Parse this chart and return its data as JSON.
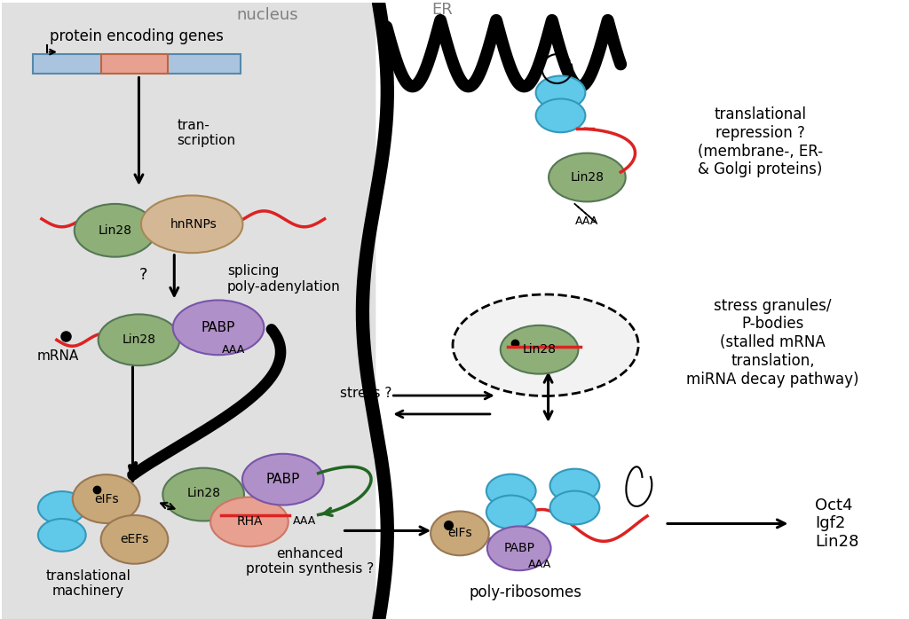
{
  "bg_color": "#ffffff",
  "nucleus_bg": "#e8e8e8",
  "labels": {
    "protein_encoding_genes": "protein encoding genes",
    "nucleus": "nucleus",
    "ER": "ER",
    "transcription": "tran-\nscription",
    "splicing": "splicing\npoly-adenylation",
    "mRNA": "mRNA",
    "stress": "stress ?",
    "translational_repression": "translational\nrepression ?\n(membrane-, ER-\n& Golgi proteins)",
    "stress_granules": "stress granules/\nP-bodies\n(stalled mRNA\ntranslation,\nmiRNA decay pathway)",
    "enhanced_protein": "enhanced\nprotein synthesis ?",
    "translational_machinery": "translational\nmachinery",
    "poly_ribosomes": "poly-ribosomes",
    "Oct4_Igf2_Lin28": "Oct4\nIgf2\nLin28",
    "AAA": "AAA"
  },
  "colors": {
    "lin28_green": "#8faf78",
    "hnRNPs_tan": "#d4b896",
    "PABP_purple": "#b090c8",
    "RHA_salmon": "#e8a090",
    "eIFs_brown": "#c8a878",
    "blue_oval": "#60c8e8",
    "red_line": "#dd2222",
    "green_arrow": "#226622",
    "gene_blue": "#aac4e0",
    "gene_red": "#e8a090",
    "gray_nucleus": "#e0e0e0"
  }
}
